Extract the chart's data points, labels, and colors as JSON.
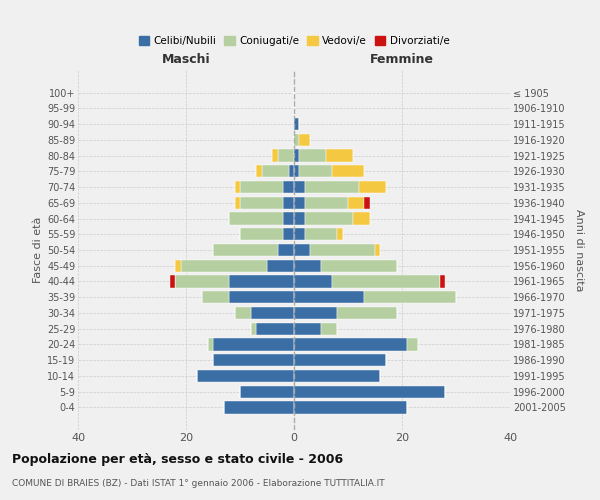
{
  "age_groups": [
    "0-4",
    "5-9",
    "10-14",
    "15-19",
    "20-24",
    "25-29",
    "30-34",
    "35-39",
    "40-44",
    "45-49",
    "50-54",
    "55-59",
    "60-64",
    "65-69",
    "70-74",
    "75-79",
    "80-84",
    "85-89",
    "90-94",
    "95-99",
    "100+"
  ],
  "birth_years": [
    "2001-2005",
    "1996-2000",
    "1991-1995",
    "1986-1990",
    "1981-1985",
    "1976-1980",
    "1971-1975",
    "1966-1970",
    "1961-1965",
    "1956-1960",
    "1951-1955",
    "1946-1950",
    "1941-1945",
    "1936-1940",
    "1931-1935",
    "1926-1930",
    "1921-1925",
    "1916-1920",
    "1911-1915",
    "1906-1910",
    "≤ 1905"
  ],
  "colors": {
    "celibe": "#3a6ea5",
    "coniugato": "#b5cfa0",
    "vedovo": "#f5c842",
    "divorziato": "#cc1111"
  },
  "maschi": {
    "celibe": [
      13,
      10,
      18,
      15,
      15,
      7,
      8,
      12,
      12,
      5,
      3,
      2,
      2,
      2,
      2,
      1,
      0,
      0,
      0,
      0,
      0
    ],
    "coniugato": [
      0,
      0,
      0,
      0,
      1,
      1,
      3,
      5,
      10,
      16,
      12,
      8,
      10,
      8,
      8,
      5,
      3,
      0,
      0,
      0,
      0
    ],
    "vedovo": [
      0,
      0,
      0,
      0,
      0,
      0,
      0,
      0,
      0,
      1,
      0,
      0,
      0,
      1,
      1,
      1,
      1,
      0,
      0,
      0,
      0
    ],
    "divorziato": [
      0,
      0,
      0,
      0,
      0,
      0,
      0,
      0,
      1,
      0,
      0,
      0,
      0,
      0,
      0,
      0,
      0,
      0,
      0,
      0,
      0
    ]
  },
  "femmine": {
    "celibe": [
      21,
      28,
      16,
      17,
      21,
      5,
      8,
      13,
      7,
      5,
      3,
      2,
      2,
      2,
      2,
      1,
      1,
      0,
      1,
      0,
      0
    ],
    "coniugato": [
      0,
      0,
      0,
      0,
      2,
      3,
      11,
      17,
      20,
      14,
      12,
      6,
      9,
      8,
      10,
      6,
      5,
      1,
      0,
      0,
      0
    ],
    "vedovo": [
      0,
      0,
      0,
      0,
      0,
      0,
      0,
      0,
      0,
      0,
      1,
      1,
      3,
      3,
      5,
      6,
      5,
      2,
      0,
      0,
      0
    ],
    "divorziato": [
      0,
      0,
      0,
      0,
      0,
      0,
      0,
      0,
      1,
      0,
      0,
      0,
      0,
      1,
      0,
      0,
      0,
      0,
      0,
      0,
      0
    ]
  },
  "xlim": 40,
  "title": "Popolazione per età, sesso e stato civile - 2006",
  "subtitle": "COMUNE DI BRAIES (BZ) - Dati ISTAT 1° gennaio 2006 - Elaborazione TUTTITALIA.IT",
  "ylabel_left": "Fasce di età",
  "ylabel_right": "Anni di nascita",
  "xlabel_left": "Maschi",
  "xlabel_right": "Femmine",
  "legend_labels": [
    "Celibi/Nubili",
    "Coniugati/e",
    "Vedovi/e",
    "Divorziati/e"
  ],
  "background_color": "#f0f0f0"
}
